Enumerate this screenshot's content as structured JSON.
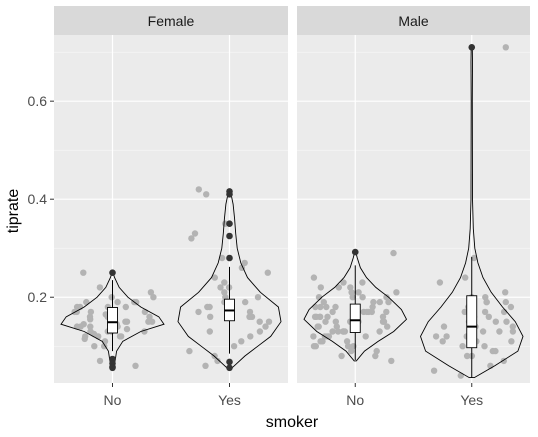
{
  "chart_data": {
    "type": "violin",
    "xlabel": "smoker",
    "ylabel": "tiprate",
    "ylim": [
      0.025,
      0.735
    ],
    "y_ticks": [
      0.2,
      0.4,
      0.6
    ],
    "y_tick_labels": [
      "0.2",
      "0.4",
      "0.6"
    ],
    "categories": [
      "No",
      "Yes"
    ],
    "facets": [
      "Female",
      "Male"
    ],
    "grid": true,
    "colors": {
      "panel": "#ebebeb",
      "strip": "#d9d9d9",
      "grid_major": "#ffffff",
      "points": "#b3b3b3",
      "outliers": "#333333",
      "outline": "#000000"
    },
    "panels": [
      {
        "facet": "Female",
        "groups": [
          {
            "category": "No",
            "box": {
              "q1": 0.127,
              "median": 0.149,
              "q3": 0.179,
              "lower": 0.09,
              "upper": 0.235
            },
            "outliers": [
              0.25,
              0.074,
              0.065,
              0.058,
              0.056
            ],
            "violin": {
              "min": 0.056,
              "max": 0.25,
              "profile": [
                [
                  0.056,
                  0.02
                ],
                [
                  0.07,
                  0.05
                ],
                [
                  0.09,
                  0.08
                ],
                [
                  0.11,
                  0.2
                ],
                [
                  0.13,
                  0.55
                ],
                [
                  0.145,
                  1.0
                ],
                [
                  0.16,
                  0.9
                ],
                [
                  0.18,
                  0.55
                ],
                [
                  0.2,
                  0.3
                ],
                [
                  0.22,
                  0.13
                ],
                [
                  0.24,
                  0.04
                ],
                [
                  0.25,
                  0.01
                ]
              ]
            },
            "points": [
              0.2,
              0.19,
              0.18,
              0.17,
              0.16,
              0.15,
              0.14,
              0.13,
              0.12,
              0.11,
              0.1,
              0.19,
              0.18,
              0.17,
              0.16,
              0.155,
              0.15,
              0.145,
              0.14,
              0.13,
              0.12,
              0.17,
              0.16,
              0.15,
              0.14,
              0.13,
              0.21,
              0.19,
              0.165,
              0.145,
              0.135,
              0.125,
              0.115,
              0.2,
              0.18,
              0.16,
              0.14,
              0.12,
              0.25,
              0.06,
              0.07,
              0.22,
              0.18,
              0.15,
              0.13,
              0.17,
              0.16,
              0.14,
              0.12,
              0.1,
              0.19,
              0.15
            ]
          },
          {
            "category": "Yes",
            "box": {
              "q1": 0.152,
              "median": 0.173,
              "q3": 0.196,
              "lower": 0.085,
              "upper": 0.262
            },
            "outliers": [
              0.416,
              0.41,
              0.35,
              0.325,
              0.28,
              0.068,
              0.056
            ],
            "violin": {
              "min": 0.056,
              "max": 0.416,
              "profile": [
                [
                  0.056,
                  0.05
                ],
                [
                  0.08,
                  0.3
                ],
                [
                  0.1,
                  0.55
                ],
                [
                  0.12,
                  0.8
                ],
                [
                  0.15,
                  1.0
                ],
                [
                  0.18,
                  0.95
                ],
                [
                  0.21,
                  0.6
                ],
                [
                  0.24,
                  0.35
                ],
                [
                  0.27,
                  0.22
                ],
                [
                  0.3,
                  0.15
                ],
                [
                  0.33,
                  0.12
                ],
                [
                  0.36,
                  0.1
                ],
                [
                  0.39,
                  0.07
                ],
                [
                  0.416,
                  0.02
                ]
              ]
            },
            "points": [
              0.42,
              0.41,
              0.35,
              0.33,
              0.32,
              0.28,
              0.27,
              0.26,
              0.25,
              0.24,
              0.23,
              0.22,
              0.21,
              0.2,
              0.2,
              0.19,
              0.18,
              0.18,
              0.17,
              0.17,
              0.16,
              0.16,
              0.15,
              0.15,
              0.14,
              0.13,
              0.12,
              0.11,
              0.1,
              0.09,
              0.08,
              0.07,
              0.06,
              0.22,
              0.19,
              0.16,
              0.13
            ]
          }
        ]
      },
      {
        "facet": "Male",
        "groups": [
          {
            "category": "No",
            "box": {
              "q1": 0.128,
              "median": 0.153,
              "q3": 0.186,
              "lower": 0.072,
              "upper": 0.265
            },
            "outliers": [
              0.292
            ],
            "violin": {
              "min": 0.07,
              "max": 0.292,
              "profile": [
                [
                  0.07,
                  0.02
                ],
                [
                  0.09,
                  0.18
                ],
                [
                  0.11,
                  0.45
                ],
                [
                  0.13,
                  0.75
                ],
                [
                  0.155,
                  1.0
                ],
                [
                  0.175,
                  0.9
                ],
                [
                  0.2,
                  0.65
                ],
                [
                  0.22,
                  0.4
                ],
                [
                  0.24,
                  0.22
                ],
                [
                  0.26,
                  0.1
                ],
                [
                  0.28,
                  0.04
                ],
                [
                  0.292,
                  0.01
                ]
              ]
            },
            "points": [
              0.29,
              0.24,
              0.23,
              0.23,
              0.22,
              0.22,
              0.21,
              0.21,
              0.2,
              0.2,
              0.2,
              0.19,
              0.19,
              0.19,
              0.18,
              0.18,
              0.18,
              0.18,
              0.17,
              0.17,
              0.17,
              0.17,
              0.16,
              0.16,
              0.16,
              0.16,
              0.16,
              0.15,
              0.15,
              0.15,
              0.15,
              0.15,
              0.14,
              0.14,
              0.14,
              0.14,
              0.13,
              0.13,
              0.13,
              0.13,
              0.12,
              0.12,
              0.12,
              0.12,
              0.11,
              0.11,
              0.11,
              0.1,
              0.1,
              0.1,
              0.09,
              0.09,
              0.08,
              0.08,
              0.07,
              0.19,
              0.17,
              0.15,
              0.13,
              0.16,
              0.14,
              0.18,
              0.2,
              0.12,
              0.22,
              0.1,
              0.17,
              0.15,
              0.13,
              0.21
            ]
          },
          {
            "category": "Yes",
            "box": {
              "q1": 0.097,
              "median": 0.14,
              "q3": 0.203,
              "lower": 0.036,
              "upper": 0.282
            },
            "outliers": [
              0.71
            ],
            "violin": {
              "min": 0.036,
              "max": 0.71,
              "profile": [
                [
                  0.036,
                  0.05
                ],
                [
                  0.06,
                  0.45
                ],
                [
                  0.09,
                  0.9
                ],
                [
                  0.12,
                  1.0
                ],
                [
                  0.15,
                  0.85
                ],
                [
                  0.18,
                  0.6
                ],
                [
                  0.21,
                  0.38
                ],
                [
                  0.24,
                  0.22
                ],
                [
                  0.27,
                  0.12
                ],
                [
                  0.3,
                  0.06
                ],
                [
                  0.34,
                  0.03
                ],
                [
                  0.4,
                  0.015
                ],
                [
                  0.5,
                  0.012
                ],
                [
                  0.6,
                  0.01
                ],
                [
                  0.68,
                  0.015
                ],
                [
                  0.71,
                  0.01
                ]
              ]
            },
            "points": [
              0.71,
              0.28,
              0.24,
              0.23,
              0.21,
              0.2,
              0.2,
              0.19,
              0.19,
              0.18,
              0.18,
              0.17,
              0.17,
              0.16,
              0.16,
              0.15,
              0.15,
              0.14,
              0.14,
              0.13,
              0.13,
              0.12,
              0.12,
              0.11,
              0.11,
              0.1,
              0.1,
              0.09,
              0.09,
              0.08,
              0.08,
              0.07,
              0.06,
              0.05,
              0.04,
              0.15,
              0.13,
              0.17,
              0.11,
              0.19,
              0.14,
              0.12,
              0.16
            ]
          }
        ]
      }
    ]
  }
}
